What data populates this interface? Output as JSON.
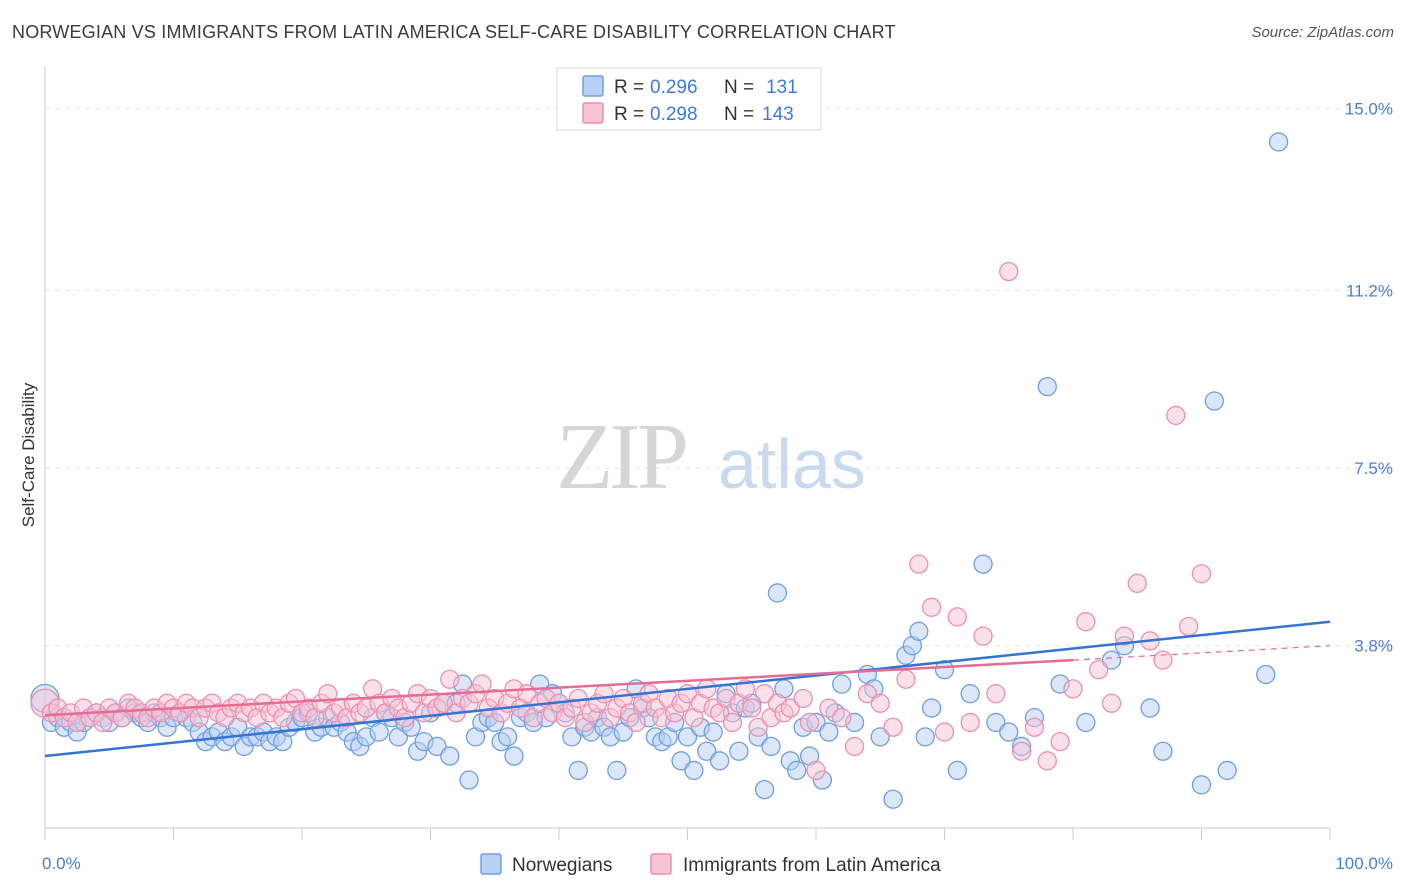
{
  "title": "NORWEGIAN VS IMMIGRANTS FROM LATIN AMERICA SELF-CARE DISABILITY CORRELATION CHART",
  "source": "Source: ZipAtlas.com",
  "watermark": {
    "zip": "ZIP",
    "atlas": "atlas"
  },
  "colors": {
    "blue": "#6f9fe0",
    "blue_fill": "#b8d0f3",
    "blue_line": "#3474d4",
    "pink": "#ec8fb0",
    "pink_fill": "#f6c3d4",
    "pink_line": "#e46c97"
  },
  "legend": {
    "rows": [
      {
        "r_label": "R = ",
        "r_value": "0.296",
        "n_label": "N = ",
        "n_value": "131"
      },
      {
        "r_label": "R = ",
        "r_value": "0.298",
        "n_label": "N = ",
        "n_value": "143"
      }
    ]
  },
  "chart_data": {
    "type": "scatter",
    "title": "NORWEGIAN VS IMMIGRANTS FROM LATIN AMERICA SELF-CARE DISABILITY CORRELATION CHART",
    "xlabel": "",
    "ylabel": "Self-Care Disability",
    "xlim": [
      0,
      100
    ],
    "ylim": [
      0,
      15.8
    ],
    "x_tick_labels": [
      "0.0%",
      "100.0%"
    ],
    "y_ticks": [
      3.8,
      7.5,
      11.2,
      15.0
    ],
    "y_tick_labels": [
      "3.8%",
      "7.5%",
      "11.2%",
      "15.0%"
    ],
    "grid": true,
    "legend_position": "top-center",
    "series": [
      {
        "name": "Norwegians",
        "r": 0.296,
        "n": 131,
        "trend": {
          "x": [
            0,
            100
          ],
          "y": [
            1.5,
            4.3
          ]
        },
        "points": [
          [
            0,
            2.7
          ],
          [
            0.5,
            2.2
          ],
          [
            1,
            2.3
          ],
          [
            1.5,
            2.1
          ],
          [
            2,
            2.2
          ],
          [
            2.5,
            2.0
          ],
          [
            3,
            2.2
          ],
          [
            3.5,
            2.3
          ],
          [
            4,
            2.4
          ],
          [
            4.5,
            2.3
          ],
          [
            5,
            2.2
          ],
          [
            5.5,
            2.4
          ],
          [
            6,
            2.3
          ],
          [
            6.5,
            2.5
          ],
          [
            7,
            2.4
          ],
          [
            7.5,
            2.3
          ],
          [
            8,
            2.2
          ],
          [
            8.5,
            2.4
          ],
          [
            9,
            2.3
          ],
          [
            9.5,
            2.1
          ],
          [
            10,
            2.3
          ],
          [
            10.5,
            2.4
          ],
          [
            11,
            2.3
          ],
          [
            11.5,
            2.2
          ],
          [
            12,
            2.0
          ],
          [
            12.5,
            1.8
          ],
          [
            13,
            1.9
          ],
          [
            13.5,
            2.0
          ],
          [
            14,
            1.8
          ],
          [
            14.5,
            1.9
          ],
          [
            15,
            2.1
          ],
          [
            15.5,
            1.7
          ],
          [
            16,
            1.9
          ],
          [
            16.5,
            1.9
          ],
          [
            17,
            2.0
          ],
          [
            17.5,
            1.8
          ],
          [
            18,
            1.9
          ],
          [
            18.5,
            1.8
          ],
          [
            19,
            2.1
          ],
          [
            19.5,
            2.2
          ],
          [
            20,
            2.3
          ],
          [
            20.5,
            2.4
          ],
          [
            21,
            2.0
          ],
          [
            21.5,
            2.1
          ],
          [
            22,
            2.3
          ],
          [
            22.5,
            2.1
          ],
          [
            23,
            2.2
          ],
          [
            23.5,
            2.0
          ],
          [
            24,
            1.8
          ],
          [
            24.5,
            1.7
          ],
          [
            25,
            1.9
          ],
          [
            25.5,
            2.3
          ],
          [
            26,
            2.0
          ],
          [
            26.5,
            2.4
          ],
          [
            27,
            2.3
          ],
          [
            27.5,
            1.9
          ],
          [
            28,
            2.2
          ],
          [
            28.5,
            2.1
          ],
          [
            29,
            1.6
          ],
          [
            29.5,
            1.8
          ],
          [
            30,
            2.4
          ],
          [
            30.5,
            1.7
          ],
          [
            31,
            2.6
          ],
          [
            31.5,
            1.5
          ],
          [
            32,
            2.6
          ],
          [
            32.5,
            3.0
          ],
          [
            33,
            1.0
          ],
          [
            33.5,
            1.9
          ],
          [
            34,
            2.2
          ],
          [
            34.5,
            2.3
          ],
          [
            35,
            2.2
          ],
          [
            35.5,
            1.8
          ],
          [
            36,
            1.9
          ],
          [
            36.5,
            1.5
          ],
          [
            37,
            2.3
          ],
          [
            37.5,
            2.4
          ],
          [
            38,
            2.2
          ],
          [
            38.5,
            3.0
          ],
          [
            39,
            2.3
          ],
          [
            39.5,
            2.8
          ],
          [
            40,
            2.6
          ],
          [
            40.5,
            2.4
          ],
          [
            41,
            1.9
          ],
          [
            41.5,
            1.2
          ],
          [
            42,
            2.1
          ],
          [
            42.5,
            2.0
          ],
          [
            43,
            2.3
          ],
          [
            43.5,
            2.1
          ],
          [
            44,
            1.9
          ],
          [
            44.5,
            1.2
          ],
          [
            45,
            2.0
          ],
          [
            45.5,
            2.3
          ],
          [
            46,
            2.9
          ],
          [
            46.5,
            2.5
          ],
          [
            47,
            2.3
          ],
          [
            47.5,
            1.9
          ],
          [
            48,
            1.8
          ],
          [
            48.5,
            1.9
          ],
          [
            49,
            2.2
          ],
          [
            49.5,
            1.4
          ],
          [
            50,
            1.9
          ],
          [
            50.5,
            1.2
          ],
          [
            51,
            2.1
          ],
          [
            51.5,
            1.6
          ],
          [
            52,
            2.0
          ],
          [
            52.5,
            1.4
          ],
          [
            53,
            2.8
          ],
          [
            53.5,
            2.4
          ],
          [
            54,
            1.6
          ],
          [
            54.5,
            2.5
          ],
          [
            55,
            2.6
          ],
          [
            55.5,
            1.9
          ],
          [
            56,
            0.8
          ],
          [
            56.5,
            1.7
          ],
          [
            57,
            4.9
          ],
          [
            57.5,
            2.9
          ],
          [
            58,
            1.4
          ],
          [
            58.5,
            1.2
          ],
          [
            59,
            2.1
          ],
          [
            59.5,
            1.5
          ],
          [
            60,
            2.2
          ],
          [
            60.5,
            1.0
          ],
          [
            61,
            2.0
          ],
          [
            61.5,
            2.4
          ],
          [
            62,
            3.0
          ],
          [
            63,
            2.2
          ],
          [
            64,
            3.2
          ],
          [
            64.5,
            2.9
          ],
          [
            65,
            1.9
          ],
          [
            66,
            0.6
          ],
          [
            67,
            3.6
          ],
          [
            67.5,
            3.8
          ],
          [
            68,
            4.1
          ],
          [
            68.5,
            1.9
          ],
          [
            69,
            2.5
          ],
          [
            70,
            3.3
          ],
          [
            71,
            1.2
          ],
          [
            72,
            2.8
          ],
          [
            73,
            5.5
          ],
          [
            74,
            2.2
          ],
          [
            75,
            2.0
          ],
          [
            76,
            1.7
          ],
          [
            77,
            2.3
          ],
          [
            78,
            9.2
          ],
          [
            79,
            3.0
          ],
          [
            81,
            2.2
          ],
          [
            83,
            3.5
          ],
          [
            84,
            3.8
          ],
          [
            86,
            2.5
          ],
          [
            87,
            1.6
          ],
          [
            90,
            0.9
          ],
          [
            91,
            8.9
          ],
          [
            92,
            1.2
          ],
          [
            95,
            3.2
          ],
          [
            96,
            14.3
          ]
        ]
      },
      {
        "name": "Immigrants from Latin America",
        "r": 0.298,
        "n": 143,
        "trend": {
          "x": [
            0,
            80
          ],
          "y": [
            2.35,
            3.5
          ]
        },
        "trend_ext": {
          "x": [
            80,
            100
          ],
          "y": [
            3.5,
            3.8
          ]
        },
        "points": [
          [
            0,
            2.6
          ],
          [
            0.5,
            2.4
          ],
          [
            1,
            2.5
          ],
          [
            1.5,
            2.3
          ],
          [
            2,
            2.4
          ],
          [
            2.5,
            2.2
          ],
          [
            3,
            2.5
          ],
          [
            3.5,
            2.3
          ],
          [
            4,
            2.4
          ],
          [
            4.5,
            2.2
          ],
          [
            5,
            2.5
          ],
          [
            5.5,
            2.4
          ],
          [
            6,
            2.3
          ],
          [
            6.5,
            2.6
          ],
          [
            7,
            2.5
          ],
          [
            7.5,
            2.4
          ],
          [
            8,
            2.3
          ],
          [
            8.5,
            2.5
          ],
          [
            9,
            2.4
          ],
          [
            9.5,
            2.6
          ],
          [
            10,
            2.5
          ],
          [
            10.5,
            2.4
          ],
          [
            11,
            2.6
          ],
          [
            11.5,
            2.5
          ],
          [
            12,
            2.3
          ],
          [
            12.5,
            2.5
          ],
          [
            13,
            2.6
          ],
          [
            13.5,
            2.4
          ],
          [
            14,
            2.3
          ],
          [
            14.5,
            2.5
          ],
          [
            15,
            2.6
          ],
          [
            15.5,
            2.4
          ],
          [
            16,
            2.5
          ],
          [
            16.5,
            2.3
          ],
          [
            17,
            2.6
          ],
          [
            17.5,
            2.4
          ],
          [
            18,
            2.5
          ],
          [
            18.5,
            2.3
          ],
          [
            19,
            2.6
          ],
          [
            19.5,
            2.7
          ],
          [
            20,
            2.4
          ],
          [
            20.5,
            2.5
          ],
          [
            21,
            2.3
          ],
          [
            21.5,
            2.6
          ],
          [
            22,
            2.8
          ],
          [
            22.5,
            2.4
          ],
          [
            23,
            2.5
          ],
          [
            23.5,
            2.3
          ],
          [
            24,
            2.6
          ],
          [
            24.5,
            2.4
          ],
          [
            25,
            2.5
          ],
          [
            25.5,
            2.9
          ],
          [
            26,
            2.6
          ],
          [
            26.5,
            2.4
          ],
          [
            27,
            2.7
          ],
          [
            27.5,
            2.5
          ],
          [
            28,
            2.3
          ],
          [
            28.5,
            2.6
          ],
          [
            29,
            2.8
          ],
          [
            29.5,
            2.4
          ],
          [
            30,
            2.7
          ],
          [
            30.5,
            2.5
          ],
          [
            31,
            2.6
          ],
          [
            31.5,
            3.1
          ],
          [
            32,
            2.4
          ],
          [
            32.5,
            2.7
          ],
          [
            33,
            2.6
          ],
          [
            33.5,
            2.8
          ],
          [
            34,
            3.0
          ],
          [
            34.5,
            2.5
          ],
          [
            35,
            2.7
          ],
          [
            35.5,
            2.4
          ],
          [
            36,
            2.6
          ],
          [
            36.5,
            2.9
          ],
          [
            37,
            2.5
          ],
          [
            37.5,
            2.8
          ],
          [
            38,
            2.3
          ],
          [
            38.5,
            2.6
          ],
          [
            39,
            2.7
          ],
          [
            39.5,
            2.4
          ],
          [
            40,
            2.6
          ],
          [
            40.5,
            2.3
          ],
          [
            41,
            2.5
          ],
          [
            41.5,
            2.7
          ],
          [
            42,
            2.2
          ],
          [
            42.5,
            2.4
          ],
          [
            43,
            2.6
          ],
          [
            43.5,
            2.8
          ],
          [
            44,
            2.3
          ],
          [
            44.5,
            2.5
          ],
          [
            45,
            2.7
          ],
          [
            45.5,
            2.4
          ],
          [
            46,
            2.2
          ],
          [
            46.5,
            2.6
          ],
          [
            47,
            2.8
          ],
          [
            47.5,
            2.5
          ],
          [
            48,
            2.3
          ],
          [
            48.5,
            2.7
          ],
          [
            49,
            2.4
          ],
          [
            49.5,
            2.6
          ],
          [
            50,
            2.8
          ],
          [
            50.5,
            2.3
          ],
          [
            51,
            2.6
          ],
          [
            51.5,
            2.9
          ],
          [
            52,
            2.5
          ],
          [
            52.5,
            2.4
          ],
          [
            53,
            2.7
          ],
          [
            53.5,
            2.2
          ],
          [
            54,
            2.6
          ],
          [
            54.5,
            2.9
          ],
          [
            55,
            2.5
          ],
          [
            55.5,
            2.1
          ],
          [
            56,
            2.8
          ],
          [
            56.5,
            2.3
          ],
          [
            57,
            2.6
          ],
          [
            57.5,
            2.4
          ],
          [
            58,
            2.5
          ],
          [
            59,
            2.7
          ],
          [
            59.5,
            2.2
          ],
          [
            60,
            1.2
          ],
          [
            61,
            2.5
          ],
          [
            62,
            2.3
          ],
          [
            63,
            1.7
          ],
          [
            64,
            2.8
          ],
          [
            65,
            2.6
          ],
          [
            66,
            2.1
          ],
          [
            67,
            3.1
          ],
          [
            68,
            5.5
          ],
          [
            69,
            4.6
          ],
          [
            70,
            2.0
          ],
          [
            71,
            4.4
          ],
          [
            72,
            2.2
          ],
          [
            73,
            4.0
          ],
          [
            74,
            2.8
          ],
          [
            75,
            11.6
          ],
          [
            76,
            1.6
          ],
          [
            77,
            2.1
          ],
          [
            78,
            1.4
          ],
          [
            79,
            1.8
          ],
          [
            80,
            2.9
          ],
          [
            81,
            4.3
          ],
          [
            82,
            3.3
          ],
          [
            83,
            2.6
          ],
          [
            84,
            4.0
          ],
          [
            85,
            5.1
          ],
          [
            86,
            3.9
          ],
          [
            87,
            3.5
          ],
          [
            88,
            8.6
          ],
          [
            89,
            4.2
          ],
          [
            90,
            5.3
          ]
        ]
      }
    ]
  },
  "bottom_legend": [
    {
      "label": "Norwegians"
    },
    {
      "label": "Immigrants from Latin America"
    }
  ]
}
